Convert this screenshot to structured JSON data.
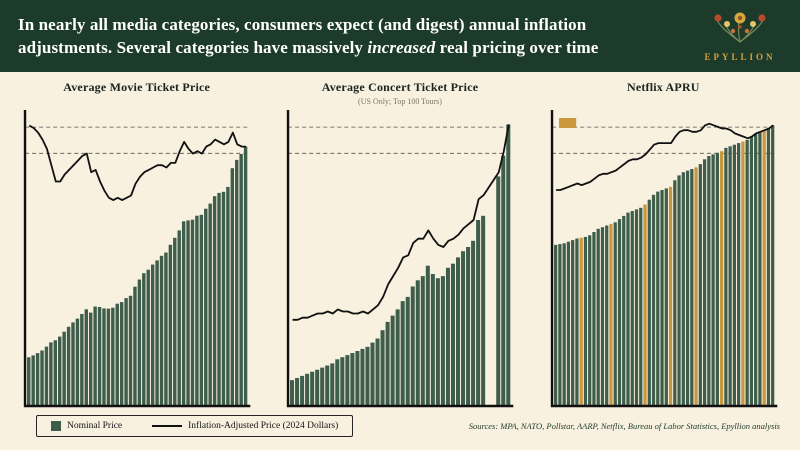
{
  "header": {
    "title": {
      "line1": "In nearly all media categories, consumers expect (and digest) annual inflation",
      "line2_pre": "adjustments. Several categories have massively ",
      "line2_emphasis": "increased",
      "line2_post": " real pricing over time"
    },
    "logo": {
      "name": "EPYLLION"
    }
  },
  "legend": {
    "nominal_label": "Nominal Price",
    "adjusted_label": "Inflation-Adjusted Price (2024 Dollars)"
  },
  "footer": {
    "sources": "Sources: MPA, NATO, Pollstar, AARP, Netflix, Bureau of Labor Statistics, Epyllion analysis"
  },
  "colors": {
    "header_bg": "#1d3b2b",
    "page_bg": "#f8f1e0",
    "bar_green": "#3f5d4b",
    "gold": "#c9973d",
    "line_black": "#111111"
  },
  "chart_data": [
    {
      "type": "bar",
      "title": "Average Movie Ticket Price",
      "subtitle": "",
      "x_start": 1975,
      "x_step": 1,
      "ylim": [
        0,
        12.5
      ],
      "highlight_indices": [],
      "price_increase_swatch": false,
      "series": [
        {
          "name": "Nominal Price",
          "render": "bar",
          "values": [
            2.05,
            2.13,
            2.23,
            2.34,
            2.51,
            2.69,
            2.78,
            2.94,
            3.15,
            3.36,
            3.55,
            3.71,
            3.91,
            4.11,
            3.97,
            4.23,
            4.21,
            4.15,
            4.14,
            4.18,
            4.35,
            4.42,
            4.59,
            4.69,
            5.08,
            5.39,
            5.66,
            5.81,
            6.03,
            6.21,
            6.41,
            6.55,
            6.88,
            7.18,
            7.5,
            7.89,
            7.93,
            7.96,
            8.13,
            8.17,
            8.43,
            8.65,
            8.97,
            9.11,
            9.16,
            9.37,
            10.17,
            10.53,
            10.78,
            11.1
          ]
        },
        {
          "name": "Inflation-Adjusted Price (2024 Dollars)",
          "render": "line",
          "values": [
            12.0,
            11.9,
            11.7,
            11.4,
            11.0,
            10.3,
            9.6,
            9.6,
            9.9,
            10.1,
            10.3,
            10.5,
            10.7,
            10.8,
            10.0,
            10.1,
            9.6,
            9.2,
            8.9,
            8.8,
            8.9,
            8.8,
            8.9,
            9.0,
            9.5,
            9.8,
            10.0,
            10.1,
            10.2,
            10.3,
            10.3,
            10.2,
            10.4,
            10.4,
            10.9,
            11.3,
            11.0,
            10.8,
            10.9,
            10.8,
            11.1,
            11.2,
            11.4,
            11.3,
            11.2,
            11.3,
            11.7,
            11.2,
            11.1,
            11.1
          ]
        }
      ]
    },
    {
      "type": "bar",
      "title": "Average Concert Ticket Price",
      "subtitle": "(US Only; Top 100 Tours)",
      "x_start": 1981,
      "x_step": 1,
      "ylim": [
        0,
        140
      ],
      "highlight_indices": [],
      "price_increase_swatch": false,
      "series": [
        {
          "name": "Nominal Price",
          "render": "bar",
          "values": [
            12,
            13,
            14,
            15,
            16,
            17,
            18,
            19,
            20,
            22,
            23,
            24,
            25,
            26,
            27,
            28,
            30,
            32,
            36,
            40,
            43,
            46,
            50,
            52,
            57,
            60,
            62,
            67,
            63,
            61,
            62,
            66,
            68,
            71,
            74,
            76,
            79,
            89,
            91,
            null,
            null,
            110,
            120,
            135
          ]
        },
        {
          "name": "Inflation-Adjusted Price (2024 Dollars)",
          "render": "line",
          "values": [
            41,
            41,
            42,
            42,
            43,
            44,
            44,
            45,
            44,
            46,
            45,
            45,
            44,
            44,
            45,
            44,
            46,
            48,
            52,
            58,
            62,
            66,
            71,
            72,
            78,
            80,
            80,
            84,
            80,
            77,
            76,
            79,
            80,
            82,
            85,
            87,
            89,
            99,
            101,
            null,
            null,
            112,
            122,
            135
          ]
        }
      ]
    },
    {
      "type": "bar",
      "title": "Netflix APRU",
      "subtitle": "",
      "x_start": 2012,
      "x_step": 0.25,
      "ylim": [
        0,
        18
      ],
      "highlight_indices": [
        6,
        13,
        21,
        27,
        33,
        39,
        44,
        49
      ],
      "price_increase_swatch": true,
      "series": [
        {
          "name": "Nominal Price",
          "render": "bar",
          "values": [
            9.9,
            9.95,
            10.0,
            10.1,
            10.2,
            10.3,
            10.35,
            10.4,
            10.5,
            10.7,
            10.9,
            11.0,
            11.1,
            11.2,
            11.3,
            11.5,
            11.7,
            11.9,
            12.0,
            12.1,
            12.2,
            12.4,
            12.7,
            13.0,
            13.2,
            13.3,
            13.4,
            13.5,
            13.9,
            14.2,
            14.4,
            14.5,
            14.6,
            14.7,
            14.9,
            15.2,
            15.4,
            15.5,
            15.6,
            15.7,
            15.9,
            16.0,
            16.1,
            16.2,
            16.3,
            16.4,
            16.6,
            16.8,
            16.9,
            17.0,
            17.1,
            17.3
          ]
        },
        {
          "name": "Inflation-Adjusted Price (2024 Dollars)",
          "render": "line",
          "values": [
            13.3,
            13.3,
            13.4,
            13.5,
            13.6,
            13.7,
            13.6,
            13.7,
            13.8,
            14.0,
            14.2,
            14.3,
            14.3,
            14.4,
            14.5,
            14.7,
            14.9,
            15.1,
            15.2,
            15.2,
            15.3,
            15.5,
            15.8,
            16.1,
            16.2,
            16.2,
            16.2,
            16.2,
            16.6,
            16.9,
            17.0,
            17.0,
            16.9,
            16.9,
            17.0,
            17.3,
            17.4,
            17.3,
            17.2,
            17.1,
            17.1,
            17.0,
            16.8,
            16.7,
            16.6,
            16.5,
            16.6,
            16.8,
            16.9,
            17.0,
            17.1,
            17.3
          ]
        }
      ]
    }
  ]
}
